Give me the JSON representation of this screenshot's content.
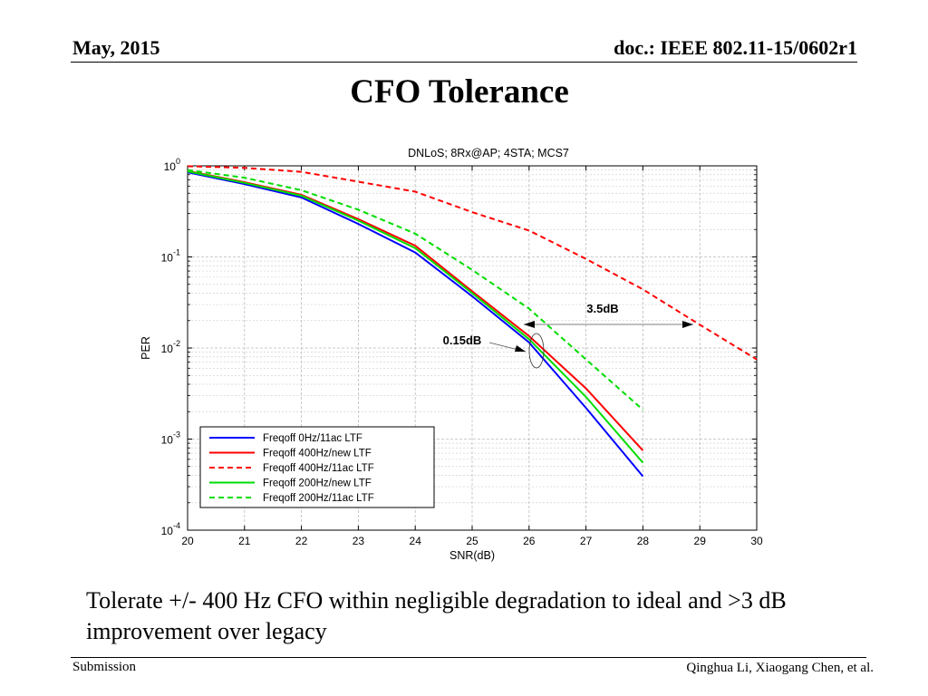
{
  "slide": {
    "header_left": "May, 2015",
    "header_right": "doc.: IEEE 802.11-15/0602r1",
    "title": "CFO Tolerance",
    "caption": "Tolerate +/- 400 Hz CFO within negligible degradation to ideal and >3 dB improvement over legacy",
    "footer_left": "Submission",
    "footer_right": "Qinghua Li, Xiaogang Chen, et al."
  },
  "chart_data": {
    "type": "line",
    "title": "DNLoS; 8Rx@AP; 4STA; MCS7",
    "xlabel": "SNR(dB)",
    "ylabel": "PER",
    "xlim": [
      20,
      30
    ],
    "ylim": [
      0.0001,
      1
    ],
    "yscale": "log",
    "grid": true,
    "legend_position": "bottom-left",
    "x_ticks": [
      20,
      21,
      22,
      23,
      24,
      25,
      26,
      27,
      28,
      29,
      30
    ],
    "y_ticks": [
      {
        "base": "10",
        "exp": "0",
        "value": 1
      },
      {
        "base": "10",
        "exp": "-1",
        "value": 0.1
      },
      {
        "base": "10",
        "exp": "-2",
        "value": 0.01
      },
      {
        "base": "10",
        "exp": "-3",
        "value": 0.001
      },
      {
        "base": "10",
        "exp": "-4",
        "value": 0.0001
      }
    ],
    "series": [
      {
        "name": "Freqoff 0Hz/11ac LTF",
        "color": "#0000ff",
        "dash": false,
        "x": [
          20,
          21,
          22,
          23,
          24,
          25,
          26,
          27,
          28
        ],
        "y": [
          0.85,
          0.63,
          0.45,
          0.23,
          0.112,
          0.037,
          0.0115,
          0.0022,
          0.00039
        ]
      },
      {
        "name": "Freqoff 400Hz/new LTF",
        "color": "#ff0000",
        "dash": false,
        "x": [
          20,
          21,
          22,
          23,
          24,
          25,
          26,
          27,
          28
        ],
        "y": [
          0.88,
          0.66,
          0.48,
          0.26,
          0.133,
          0.042,
          0.0135,
          0.0036,
          0.00075
        ]
      },
      {
        "name": "Freqoff 400Hz/11ac LTF",
        "color": "#ff0000",
        "dash": true,
        "x": [
          20,
          21,
          22,
          23,
          24,
          25,
          26,
          27,
          28,
          29,
          30
        ],
        "y": [
          0.99,
          0.95,
          0.86,
          0.67,
          0.52,
          0.31,
          0.195,
          0.095,
          0.044,
          0.018,
          0.0075
        ]
      },
      {
        "name": "Freqoff 200Hz/new LTF",
        "color": "#00dd00",
        "dash": false,
        "x": [
          20,
          21,
          22,
          23,
          24,
          25,
          26,
          27,
          28
        ],
        "y": [
          0.87,
          0.65,
          0.47,
          0.25,
          0.125,
          0.04,
          0.0125,
          0.0029,
          0.00055
        ]
      },
      {
        "name": "Freqoff 200Hz/11ac LTF",
        "color": "#00dd00",
        "dash": true,
        "x": [
          20,
          21,
          22,
          23,
          24,
          25,
          26,
          27,
          28
        ],
        "y": [
          0.9,
          0.74,
          0.54,
          0.33,
          0.18,
          0.072,
          0.027,
          0.0075,
          0.0021
        ]
      }
    ],
    "annotations": [
      {
        "text": "3.5dB"
      },
      {
        "text": "0.15dB"
      }
    ]
  }
}
